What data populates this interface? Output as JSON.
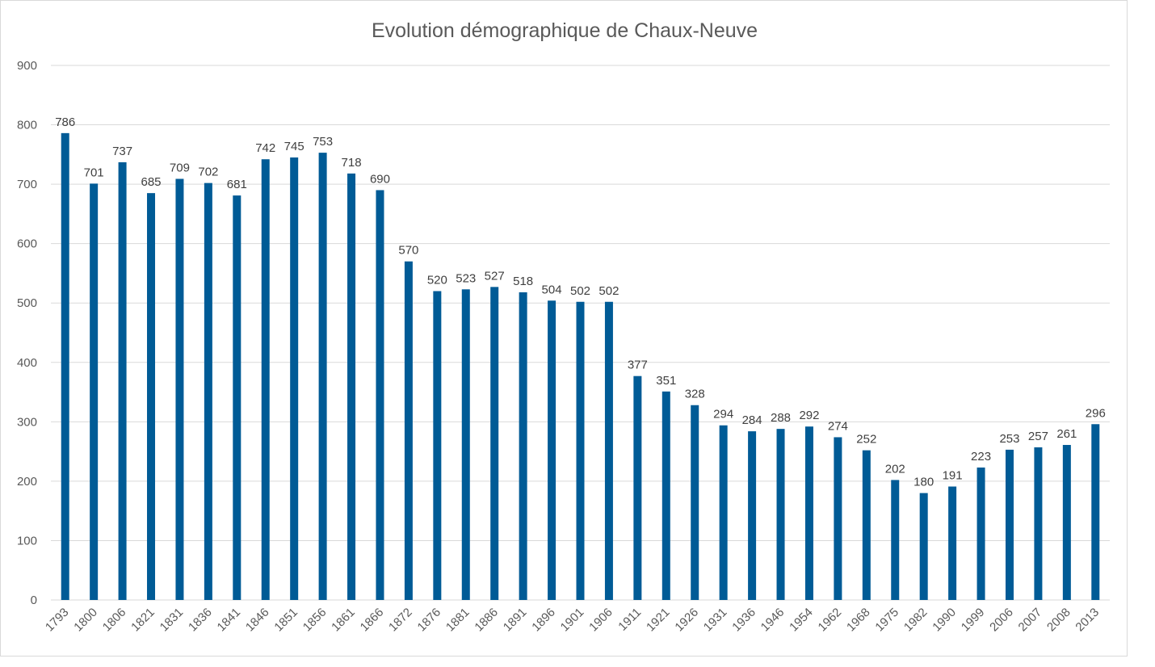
{
  "chart_data": {
    "type": "bar",
    "title": "Evolution démographique de Chaux-Neuve",
    "xlabel": "",
    "ylabel": "",
    "ylim": [
      0,
      900
    ],
    "yticks": [
      0,
      100,
      200,
      300,
      400,
      500,
      600,
      700,
      800,
      900
    ],
    "grid": true,
    "legend": "none",
    "bar_color": "#005b96",
    "categories": [
      "1793",
      "1800",
      "1806",
      "1821",
      "1831",
      "1836",
      "1841",
      "1846",
      "1851",
      "1856",
      "1861",
      "1866",
      "1872",
      "1876",
      "1881",
      "1886",
      "1891",
      "1896",
      "1901",
      "1906",
      "1911",
      "1921",
      "1926",
      "1931",
      "1936",
      "1946",
      "1954",
      "1962",
      "1968",
      "1975",
      "1982",
      "1990",
      "1999",
      "2006",
      "2007",
      "2008",
      "2013"
    ],
    "values": [
      786,
      701,
      737,
      685,
      709,
      702,
      681,
      742,
      745,
      753,
      718,
      690,
      570,
      520,
      523,
      527,
      518,
      504,
      502,
      502,
      377,
      351,
      328,
      294,
      284,
      288,
      292,
      274,
      252,
      202,
      180,
      191,
      223,
      253,
      257,
      261,
      296
    ],
    "data_labels": [
      "786",
      "701",
      "737",
      "685",
      "709",
      "702",
      "681",
      "742",
      "745",
      "753",
      "718",
      "690",
      "570",
      "520",
      "523",
      "527",
      "518",
      "504",
      "502",
      "502",
      "377",
      "351",
      "328",
      "294",
      "284",
      "288",
      "292",
      "274",
      "252",
      "202",
      "180",
      "191",
      "223",
      "253",
      "257",
      "261",
      "296"
    ]
  }
}
